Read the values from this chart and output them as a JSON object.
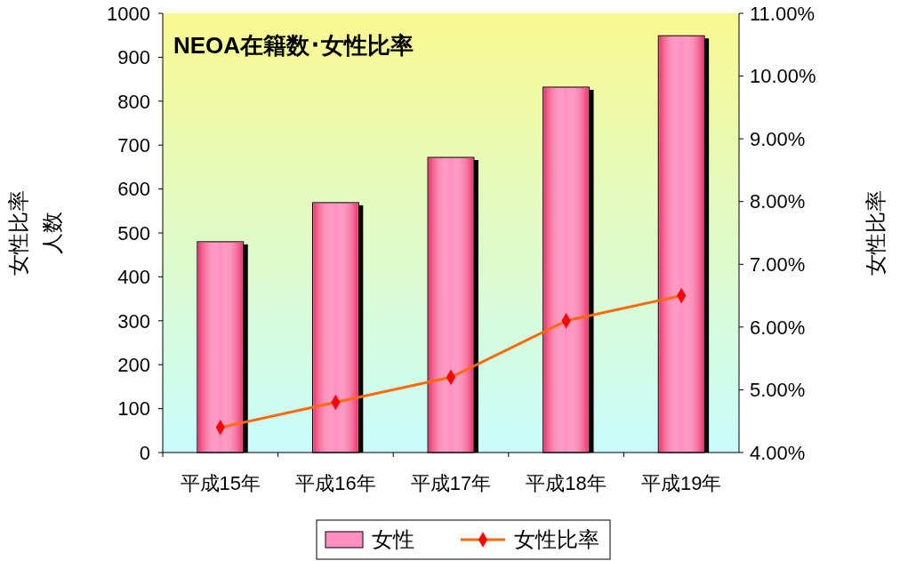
{
  "chart_data": {
    "type": "bar",
    "title": "NEOA在籍数･女性比率",
    "categories": [
      "平成15年",
      "平成16年",
      "平成17年",
      "平成18年",
      "平成19年"
    ],
    "series": [
      {
        "name": "女性",
        "color": "#ff8fc0",
        "values": [
          480,
          569,
          672,
          832,
          949
        ]
      },
      {
        "name": "女性比率",
        "type": "line",
        "axis": "y2",
        "color": "#ff6a00",
        "values": [
          4.4,
          4.8,
          5.2,
          6.1,
          6.5
        ]
      }
    ],
    "ylabel": "女性比率人数",
    "y2label": "女性比率",
    "ylim": [
      0,
      1000
    ],
    "yticks": [
      0,
      100,
      200,
      300,
      400,
      500,
      600,
      700,
      800,
      900,
      1000
    ],
    "y2lim": [
      4,
      11
    ],
    "y2ticks": [
      {
        "value": 4,
        "label": "4.00%"
      },
      {
        "value": 5,
        "label": "5.00%"
      },
      {
        "value": 6,
        "label": "6.00%"
      },
      {
        "value": 7,
        "label": "7.00%"
      },
      {
        "value": 8,
        "label": "8.00%"
      },
      {
        "value": 9,
        "label": "9.00%"
      },
      {
        "value": 10,
        "label": "10.00%"
      },
      {
        "value": 11,
        "label": "11.00%"
      }
    ],
    "legend": "bottom",
    "marker": "diamond",
    "grid": false
  }
}
